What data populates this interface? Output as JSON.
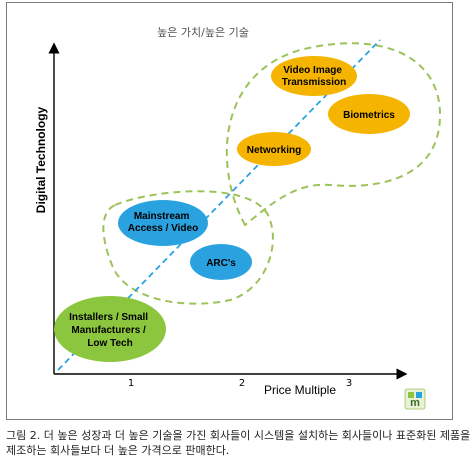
{
  "figure": {
    "title": "높은 가치/높은 기술",
    "y_axis_label": "Digital Technology",
    "x_axis_label": "Price Multiple",
    "x_ticks": [
      "1",
      "2",
      "3"
    ],
    "logo_text": "m",
    "colors": {
      "orange": "#f5b400",
      "blue": "#2ba2e0",
      "green": "#8cc63f",
      "dash_green": "#9cc25a",
      "trend_blue": "#2ba2e0"
    },
    "nodes": [
      {
        "id": "video",
        "lines": [
          "Video Image",
          "Transmission"
        ],
        "color": "orange"
      },
      {
        "id": "biometrics",
        "lines": [
          "Biometrics"
        ],
        "color": "orange"
      },
      {
        "id": "networking",
        "lines": [
          "Networking"
        ],
        "color": "orange"
      },
      {
        "id": "mainstream",
        "lines": [
          "Mainstream",
          "Access / Video"
        ],
        "color": "blue"
      },
      {
        "id": "arcs",
        "lines": [
          "ARC's"
        ],
        "color": "blue"
      },
      {
        "id": "installers",
        "lines": [
          "Installers / Small",
          "Manufacturers /",
          "Low Tech"
        ],
        "color": "green"
      }
    ]
  },
  "caption": {
    "line1": "그림 2. 더 높은 성장과 더 높은 기술을 가진 회사들이 시스템을 설치하는 회사들이나 표준화된 제품을",
    "line2": "제조하는 회사들보다 더 높은 가격으로 판매한다."
  }
}
